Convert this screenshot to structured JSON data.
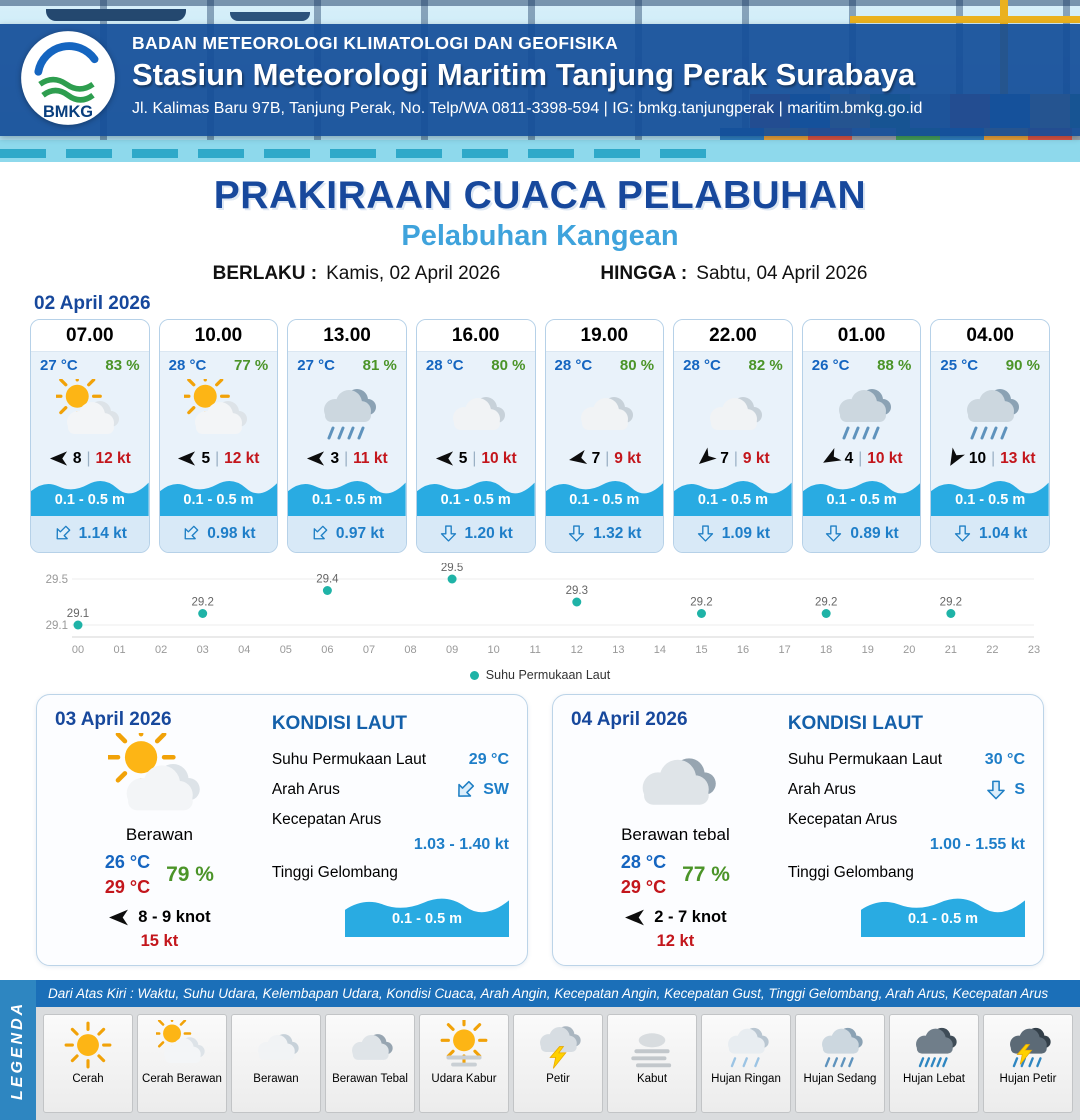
{
  "header": {
    "agency": "BADAN METEOROLOGI KLIMATOLOGI DAN GEOFISIKA",
    "station": "Stasiun Meteorologi Maritim Tanjung Perak Surabaya",
    "address": "Jl. Kalimas Baru 97B, Tanjung Perak, No. Telp/WA 0811-3398-594 | IG: bmkg.tanjungperak | maritim.bmkg.go.id",
    "logo_text": "BMKG"
  },
  "title": {
    "main": "PRAKIRAAN CUACA PELABUHAN",
    "subtitle": "Pelabuhan Kangean",
    "valid_label": "BERLAKU :",
    "valid_value": "Kamis, 02 April 2026",
    "until_label": "HINGGA :",
    "until_value": "Sabtu, 04 April 2026"
  },
  "hourly": {
    "date": "02 April 2026",
    "sep": "|",
    "cards": [
      {
        "time": "07.00",
        "temp": "27 °C",
        "humidity": "83 %",
        "icon": "cerah-berawan",
        "wind": "8",
        "gust": "12 kt",
        "wind_rot": 0,
        "wave": "0.1 - 0.5 m",
        "current": "1.14 kt",
        "current_rot": 45
      },
      {
        "time": "10.00",
        "temp": "28 °C",
        "humidity": "77 %",
        "icon": "cerah-berawan",
        "wind": "5",
        "gust": "12 kt",
        "wind_rot": 0,
        "wave": "0.1 - 0.5 m",
        "current": "0.98 kt",
        "current_rot": 45
      },
      {
        "time": "13.00",
        "temp": "27 °C",
        "humidity": "81 %",
        "icon": "hujan-sedang",
        "wind": "3",
        "gust": "11 kt",
        "wind_rot": 0,
        "wave": "0.1 - 0.5 m",
        "current": "0.97 kt",
        "current_rot": 45
      },
      {
        "time": "16.00",
        "temp": "28 °C",
        "humidity": "80 %",
        "icon": "berawan",
        "wind": "5",
        "gust": "10 kt",
        "wind_rot": 0,
        "wave": "0.1 - 0.5 m",
        "current": "1.20 kt",
        "current_rot": 0
      },
      {
        "time": "19.00",
        "temp": "28 °C",
        "humidity": "80 %",
        "icon": "berawan",
        "wind": "7",
        "gust": "9 kt",
        "wind_rot": -10,
        "wave": "0.1 - 0.5 m",
        "current": "1.32 kt",
        "current_rot": 0
      },
      {
        "time": "22.00",
        "temp": "28 °C",
        "humidity": "82 %",
        "icon": "berawan",
        "wind": "7",
        "gust": "9 kt",
        "wind_rot": -40,
        "wave": "0.1 - 0.5 m",
        "current": "1.09 kt",
        "current_rot": 0
      },
      {
        "time": "01.00",
        "temp": "26 °C",
        "humidity": "88 %",
        "icon": "hujan-sedang",
        "wind": "4",
        "gust": "10 kt",
        "wind_rot": -30,
        "wave": "0.1 - 0.5 m",
        "current": "0.89 kt",
        "current_rot": 0
      },
      {
        "time": "04.00",
        "temp": "25 °C",
        "humidity": "90 %",
        "icon": "hujan-sedang",
        "wind": "10",
        "gust": "13 kt",
        "wind_rot": -60,
        "wave": "0.1 - 0.5 m",
        "current": "1.04 kt",
        "current_rot": 0
      }
    ]
  },
  "chart_data": {
    "type": "scatter",
    "series": [
      {
        "name": "Suhu Permukaan Laut",
        "x": [
          0,
          3,
          6,
          9,
          12,
          15,
          18,
          21
        ],
        "values": [
          29.1,
          29.2,
          29.4,
          29.5,
          29.3,
          29.2,
          29.2,
          29.2
        ]
      }
    ],
    "x_ticks": [
      "00",
      "01",
      "02",
      "03",
      "04",
      "05",
      "06",
      "07",
      "08",
      "09",
      "10",
      "11",
      "12",
      "13",
      "14",
      "15",
      "16",
      "17",
      "18",
      "19",
      "20",
      "21",
      "22",
      "23"
    ],
    "ylim": [
      29.1,
      29.5
    ],
    "y_ticks": [
      29.5,
      29.1
    ],
    "point_color": "#1fb3a7",
    "legend_position": "bottom",
    "grid": "minimal"
  },
  "days": [
    {
      "date": "03 April 2026",
      "icon": "cerah-berawan",
      "condition": "Berawan",
      "temp_min": "26 °C",
      "temp_max": "29 °C",
      "humidity": "79 %",
      "wind": "8 - 9 knot",
      "gust": "15 kt",
      "sea": {
        "heading": "KONDISI LAUT",
        "sst_label": "Suhu Permukaan Laut",
        "sst": "29 °C",
        "dir_label": "Arah Arus",
        "dir": "SW",
        "dir_rot": 45,
        "speed_label": "Kecepatan Arus",
        "speed": "1.03 - 1.40 kt",
        "wave_label": "Tinggi Gelombang",
        "wave": "0.1 - 0.5 m"
      }
    },
    {
      "date": "04 April 2026",
      "icon": "berawan-tebal",
      "condition": "Berawan tebal",
      "temp_min": "28 °C",
      "temp_max": "29 °C",
      "humidity": "77 %",
      "wind": "2 - 7 knot",
      "gust": "12 kt",
      "sea": {
        "heading": "KONDISI LAUT",
        "sst_label": "Suhu Permukaan Laut",
        "sst": "30 °C",
        "dir_label": "Arah Arus",
        "dir": "S",
        "dir_rot": 0,
        "speed_label": "Kecepatan Arus",
        "speed": "1.00 - 1.55 kt",
        "wave_label": "Tinggi Gelombang",
        "wave": "0.1 - 0.5 m"
      }
    }
  ],
  "legend": {
    "side_title": "LEGENDA",
    "caption": "Dari Atas Kiri : Waktu, Suhu Udara, Kelembapan Udara, Kondisi Cuaca, Arah Angin, Kecepatan Angin, Kecepatan Gust, Tinggi Gelombang, Arah Arus, Kecepatan Arus",
    "items": [
      {
        "label": "Cerah",
        "icon": "cerah"
      },
      {
        "label": "Cerah Berawan",
        "icon": "cerah-berawan"
      },
      {
        "label": "Berawan",
        "icon": "berawan"
      },
      {
        "label": "Berawan Tebal",
        "icon": "berawan-tebal"
      },
      {
        "label": "Udara Kabur",
        "icon": "udara-kabur"
      },
      {
        "label": "Petir",
        "icon": "petir"
      },
      {
        "label": "Kabut",
        "icon": "kabut"
      },
      {
        "label": "Hujan Ringan",
        "icon": "hujan-ringan"
      },
      {
        "label": "Hujan Sedang",
        "icon": "hujan-sedang"
      },
      {
        "label": "Hujan Lebat",
        "icon": "hujan-lebat"
      },
      {
        "label": "Hujan Petir",
        "icon": "hujan-petir"
      }
    ]
  }
}
